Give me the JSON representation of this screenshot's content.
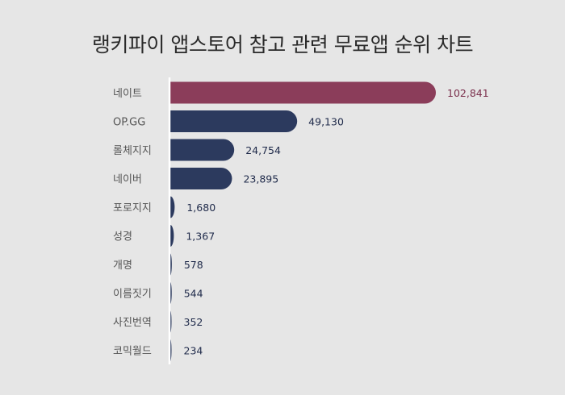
{
  "chart_data": {
    "type": "bar",
    "orientation": "horizontal",
    "title": "랭키파이 앱스토어 참고 관련 무료앱 순위 차트",
    "categories": [
      "네이트",
      "OP.GG",
      "롤체지지",
      "네이버",
      "포로지지",
      "성경",
      "개명",
      "이름짓기",
      "사진번역",
      "코믹월드"
    ],
    "values": [
      102841,
      49130,
      24754,
      23895,
      1680,
      1367,
      578,
      544,
      352,
      234
    ],
    "value_labels": [
      "102,841",
      "49,130",
      "24,754",
      "23,895",
      "1,680",
      "1,367",
      "578",
      "544",
      "352",
      "234"
    ],
    "xlim": [
      0,
      102841
    ],
    "grid": false,
    "colors": {
      "highlight": "#8b3d5a",
      "default": "#2c3a5e",
      "highlight_label": "#7a2f4c",
      "default_label": "#1f2a4a",
      "category_label": "#555555",
      "axis": "#ffffff"
    }
  }
}
